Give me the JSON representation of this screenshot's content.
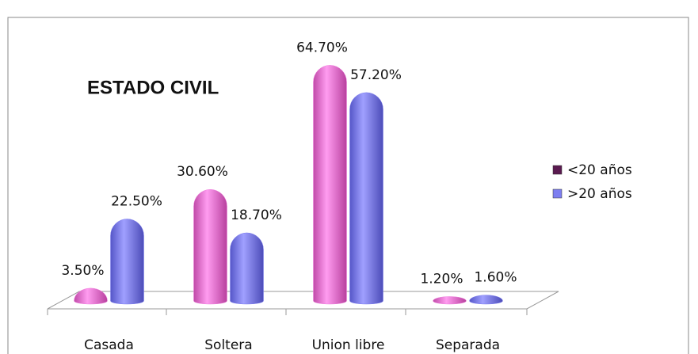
{
  "chart_data": {
    "type": "bar",
    "title": "ESTADO CIVIL",
    "categories": [
      "Casada",
      "Soltera",
      "Union libre",
      "Separada"
    ],
    "series": [
      {
        "name": "<20 años",
        "color": "#ee7fdc",
        "values": [
          3.5,
          30.6,
          64.7,
          1.2
        ],
        "value_labels": [
          "3.50%",
          "30.60%",
          "64.70%",
          "1.20%"
        ]
      },
      {
        "name": ">20 años",
        "color": "#7d7ef0",
        "values": [
          22.5,
          18.7,
          57.2,
          1.6
        ],
        "value_labels": [
          "22.50%",
          "18.70%",
          "57.20%",
          "1.60%"
        ]
      }
    ],
    "legend": "right"
  }
}
